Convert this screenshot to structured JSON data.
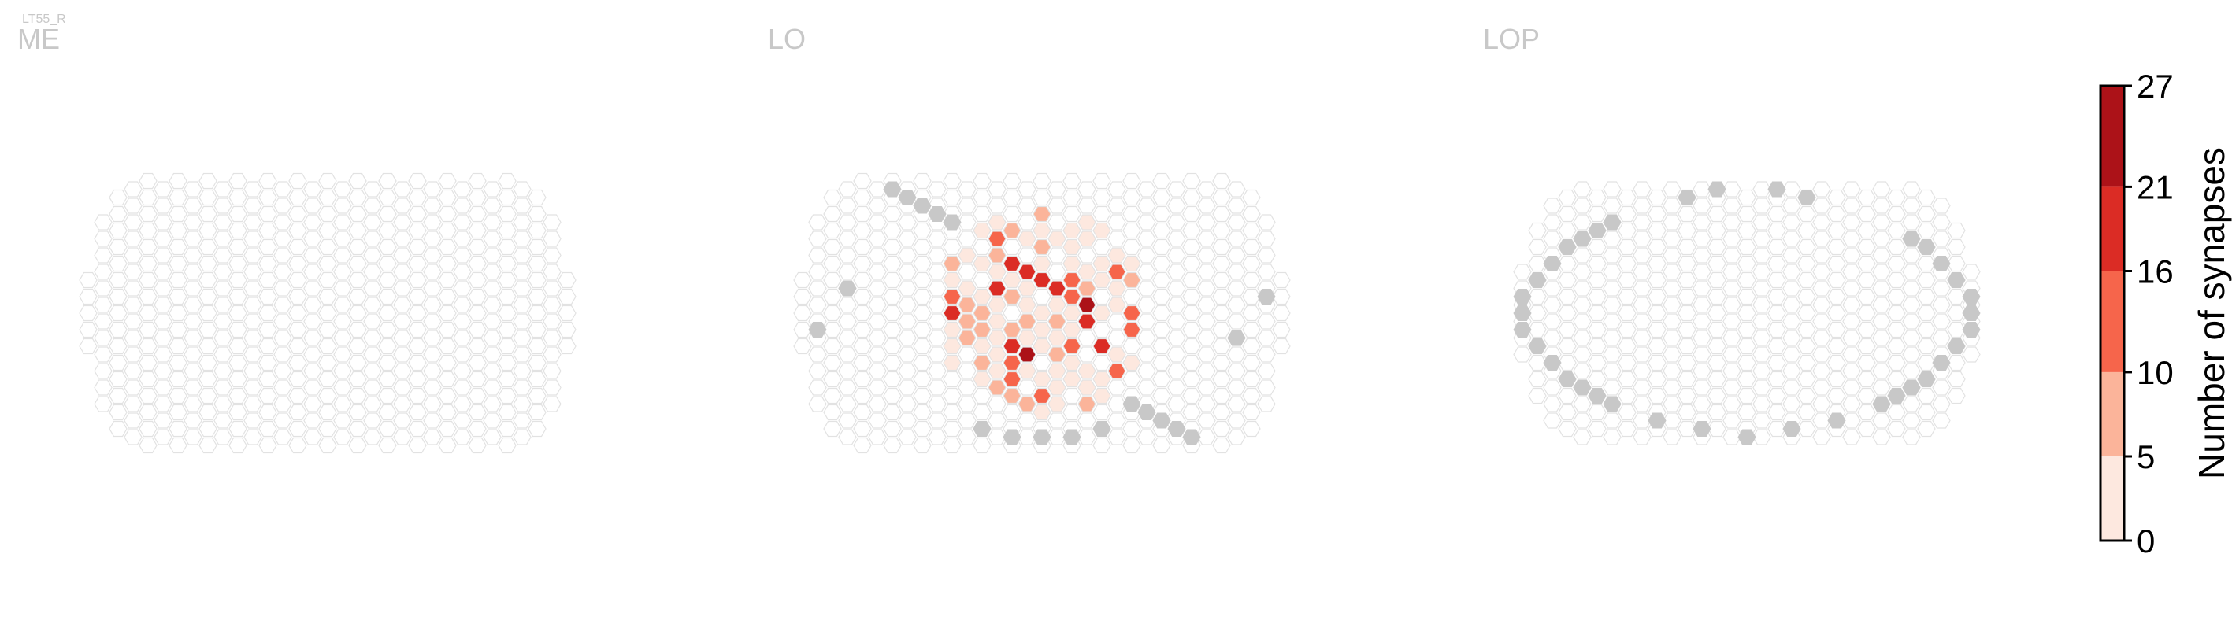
{
  "cell_name": "LT55_R",
  "chart_data": [
    {
      "type": "heatmap",
      "subtype": "hexagonal-column-map",
      "title": "ME",
      "empty_color": "#ffffff",
      "edge_color": "#e2e2e2",
      "max_column_radius": 16,
      "outside_columns": [],
      "high_cells": []
    },
    {
      "type": "heatmap",
      "subtype": "hexagonal-column-map",
      "title": "LO",
      "empty_color": "#ffffff",
      "edge_color": "#e2e2e2",
      "max_column_radius": 16,
      "outside_columns": [
        [
          -6,
          -11
        ],
        [
          -7,
          -12
        ],
        [
          -8,
          -13
        ],
        [
          -9,
          -14
        ],
        [
          -10,
          -15
        ],
        [
          6,
          11
        ],
        [
          7,
          12
        ],
        [
          8,
          13
        ],
        [
          9,
          14
        ],
        [
          10,
          15
        ],
        [
          -13,
          -3
        ],
        [
          -15,
          2
        ],
        [
          15,
          -2
        ],
        [
          13,
          3
        ],
        [
          -4,
          14
        ],
        [
          -2,
          15
        ],
        [
          0,
          15
        ],
        [
          2,
          15
        ],
        [
          4,
          14
        ]
      ],
      "synapse_region_radius": 7,
      "high_cells": [
        [
          -2,
          -6,
          20
        ],
        [
          -1,
          -5,
          18
        ],
        [
          0,
          -5,
          16
        ],
        [
          2,
          -4,
          16
        ],
        [
          1,
          -3,
          19
        ],
        [
          -3,
          -2,
          22
        ],
        [
          -4,
          -1,
          20
        ],
        [
          -2,
          -1,
          27
        ],
        [
          0,
          -1,
          18
        ],
        [
          1,
          0,
          20
        ],
        [
          3,
          -1,
          22
        ],
        [
          5,
          -2,
          27
        ],
        [
          6,
          -1,
          22
        ],
        [
          -5,
          2,
          16
        ],
        [
          -3,
          2,
          19
        ],
        [
          -1,
          2,
          16
        ],
        [
          1,
          2,
          20
        ],
        [
          3,
          1,
          18
        ],
        [
          -2,
          4,
          19
        ],
        [
          -1,
          5,
          26
        ],
        [
          0,
          5,
          16
        ],
        [
          2,
          5,
          19
        ],
        [
          4,
          4,
          18
        ],
        [
          -3,
          -3,
          18
        ],
        [
          0,
          -4,
          20
        ],
        [
          2,
          -2,
          14
        ],
        [
          4,
          -3,
          16
        ],
        [
          -6,
          0,
          18
        ],
        [
          6,
          2,
          14
        ],
        [
          0,
          7,
          19
        ],
        [
          -1,
          8,
          14
        ],
        [
          3,
          6,
          20
        ]
      ]
    },
    {
      "type": "heatmap",
      "subtype": "hexagonal-column-map",
      "title": "LOP",
      "empty_color": "#ffffff",
      "edge_color": "#e2e2e2",
      "max_column_radius": 15,
      "outside_columns": [
        [
          -9,
          -11
        ],
        [
          -10,
          -10
        ],
        [
          -11,
          -9
        ],
        [
          -12,
          -8
        ],
        [
          -13,
          -6
        ],
        [
          -14,
          -4
        ],
        [
          -15,
          -2
        ],
        [
          -15,
          0
        ],
        [
          -15,
          2
        ],
        [
          -14,
          4
        ],
        [
          -13,
          6
        ],
        [
          -12,
          8
        ],
        [
          -11,
          9
        ],
        [
          -10,
          10
        ],
        [
          -9,
          11
        ],
        [
          -6,
          13
        ],
        [
          -3,
          14
        ],
        [
          0,
          15
        ],
        [
          3,
          14
        ],
        [
          6,
          13
        ],
        [
          9,
          11
        ],
        [
          10,
          10
        ],
        [
          11,
          9
        ],
        [
          12,
          8
        ],
        [
          13,
          6
        ],
        [
          14,
          4
        ],
        [
          15,
          2
        ],
        [
          15,
          0
        ],
        [
          15,
          -2
        ],
        [
          14,
          -4
        ],
        [
          13,
          -6
        ],
        [
          12,
          -8
        ],
        [
          11,
          -9
        ],
        [
          4,
          -14
        ],
        [
          2,
          -15
        ],
        [
          -2,
          -15
        ],
        [
          -4,
          -14
        ]
      ],
      "high_cells": []
    }
  ],
  "colorbar": {
    "label": "Number of synapses",
    "tick_labels": [
      "0",
      "5",
      "10",
      "16",
      "21",
      "27"
    ],
    "ticks": [
      0,
      5,
      10,
      16,
      21,
      27
    ],
    "colors": [
      "#fde8df",
      "#fbb49a",
      "#f6654b",
      "#db2c25",
      "#ac1218"
    ],
    "range": [
      0,
      27
    ],
    "outside_color": "#c8c8c8"
  }
}
